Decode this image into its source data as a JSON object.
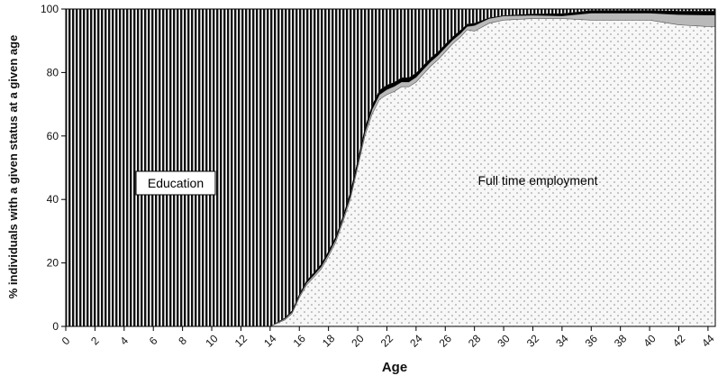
{
  "chart_data": {
    "type": "area",
    "xlabel": "Age",
    "ylabel": "% individuals with a given status at a given age",
    "xlim": [
      0,
      44.5
    ],
    "ylim": [
      0,
      100
    ],
    "x_ticks": [
      0,
      2,
      4,
      6,
      8,
      10,
      12,
      14,
      16,
      18,
      20,
      22,
      24,
      26,
      28,
      30,
      32,
      34,
      36,
      38,
      40,
      42,
      44
    ],
    "y_ticks": [
      0,
      20,
      40,
      60,
      80,
      100
    ],
    "grid": false,
    "legend": "none",
    "annotations": [
      {
        "text": "Education",
        "boxed": true
      },
      {
        "text": "Full time employment",
        "boxed": false
      }
    ],
    "x": [
      0,
      10,
      14,
      14.5,
      15,
      15.5,
      16,
      16.5,
      17,
      17.5,
      18,
      18.5,
      19,
      19.5,
      20,
      20.5,
      21,
      21.5,
      22,
      22.5,
      23,
      23.5,
      24,
      24.5,
      25,
      25.5,
      26,
      26.5,
      27,
      27.5,
      28,
      29,
      30,
      32,
      34,
      36,
      38,
      40,
      42,
      44,
      44.5
    ],
    "series": [
      {
        "fill": "dotted",
        "values": [
          0,
          0,
          0,
          1,
          2,
          4,
          9,
          13,
          15.5,
          18,
          22,
          26.5,
          33,
          40,
          50,
          60,
          67,
          71.5,
          73,
          74,
          75.5,
          75.5,
          77,
          79.5,
          82,
          84,
          86.5,
          89,
          91,
          93.5,
          93,
          95.5,
          96.5,
          97,
          97,
          96.5,
          96.5,
          96.5,
          95,
          94.5,
          94.5
        ]
      },
      {
        "fill": "light-gray",
        "values": [
          0,
          0,
          0,
          0.2,
          0.4,
          0.5,
          0.6,
          0.7,
          0.7,
          0.8,
          0.8,
          0.9,
          0.9,
          1,
          1,
          1.2,
          1.4,
          1.5,
          1.6,
          1.6,
          1.5,
          1.5,
          1.5,
          1.5,
          1.4,
          1.4,
          1.3,
          1.2,
          1.1,
          1,
          1.8,
          1.5,
          1.3,
          1,
          0.8,
          2.2,
          2.2,
          2.2,
          3.2,
          3.6,
          3.6
        ]
      },
      {
        "fill": "black",
        "values": [
          0,
          0,
          0,
          0.2,
          0.3,
          0.5,
          0.6,
          0.8,
          0.8,
          0.9,
          1,
          1,
          1,
          1.5,
          1.5,
          1.5,
          1.5,
          1.5,
          1.5,
          1.4,
          1.4,
          1.4,
          1.4,
          1.3,
          1.3,
          1.2,
          1.2,
          1.1,
          1.1,
          0.8,
          0.8,
          0.3,
          0.2,
          0.5,
          0.8,
          0.9,
          0.9,
          0.9,
          1.2,
          1.3,
          1.3
        ]
      },
      {
        "name": "Education",
        "fill": "vertical-stripes",
        "values": [
          100,
          100,
          100,
          98.6,
          97.3,
          95,
          89.8,
          85.5,
          83,
          80.3,
          76.2,
          71.6,
          65.1,
          57.5,
          47.5,
          37.3,
          30.1,
          25.5,
          23.9,
          23,
          21.6,
          21.6,
          20.1,
          17.7,
          15.3,
          13.4,
          11,
          8.7,
          6.8,
          4.7,
          4.4,
          2.7,
          2,
          1.5,
          1.4,
          0.4,
          0.4,
          0.4,
          0.6,
          0.6,
          0.6
        ]
      }
    ]
  }
}
